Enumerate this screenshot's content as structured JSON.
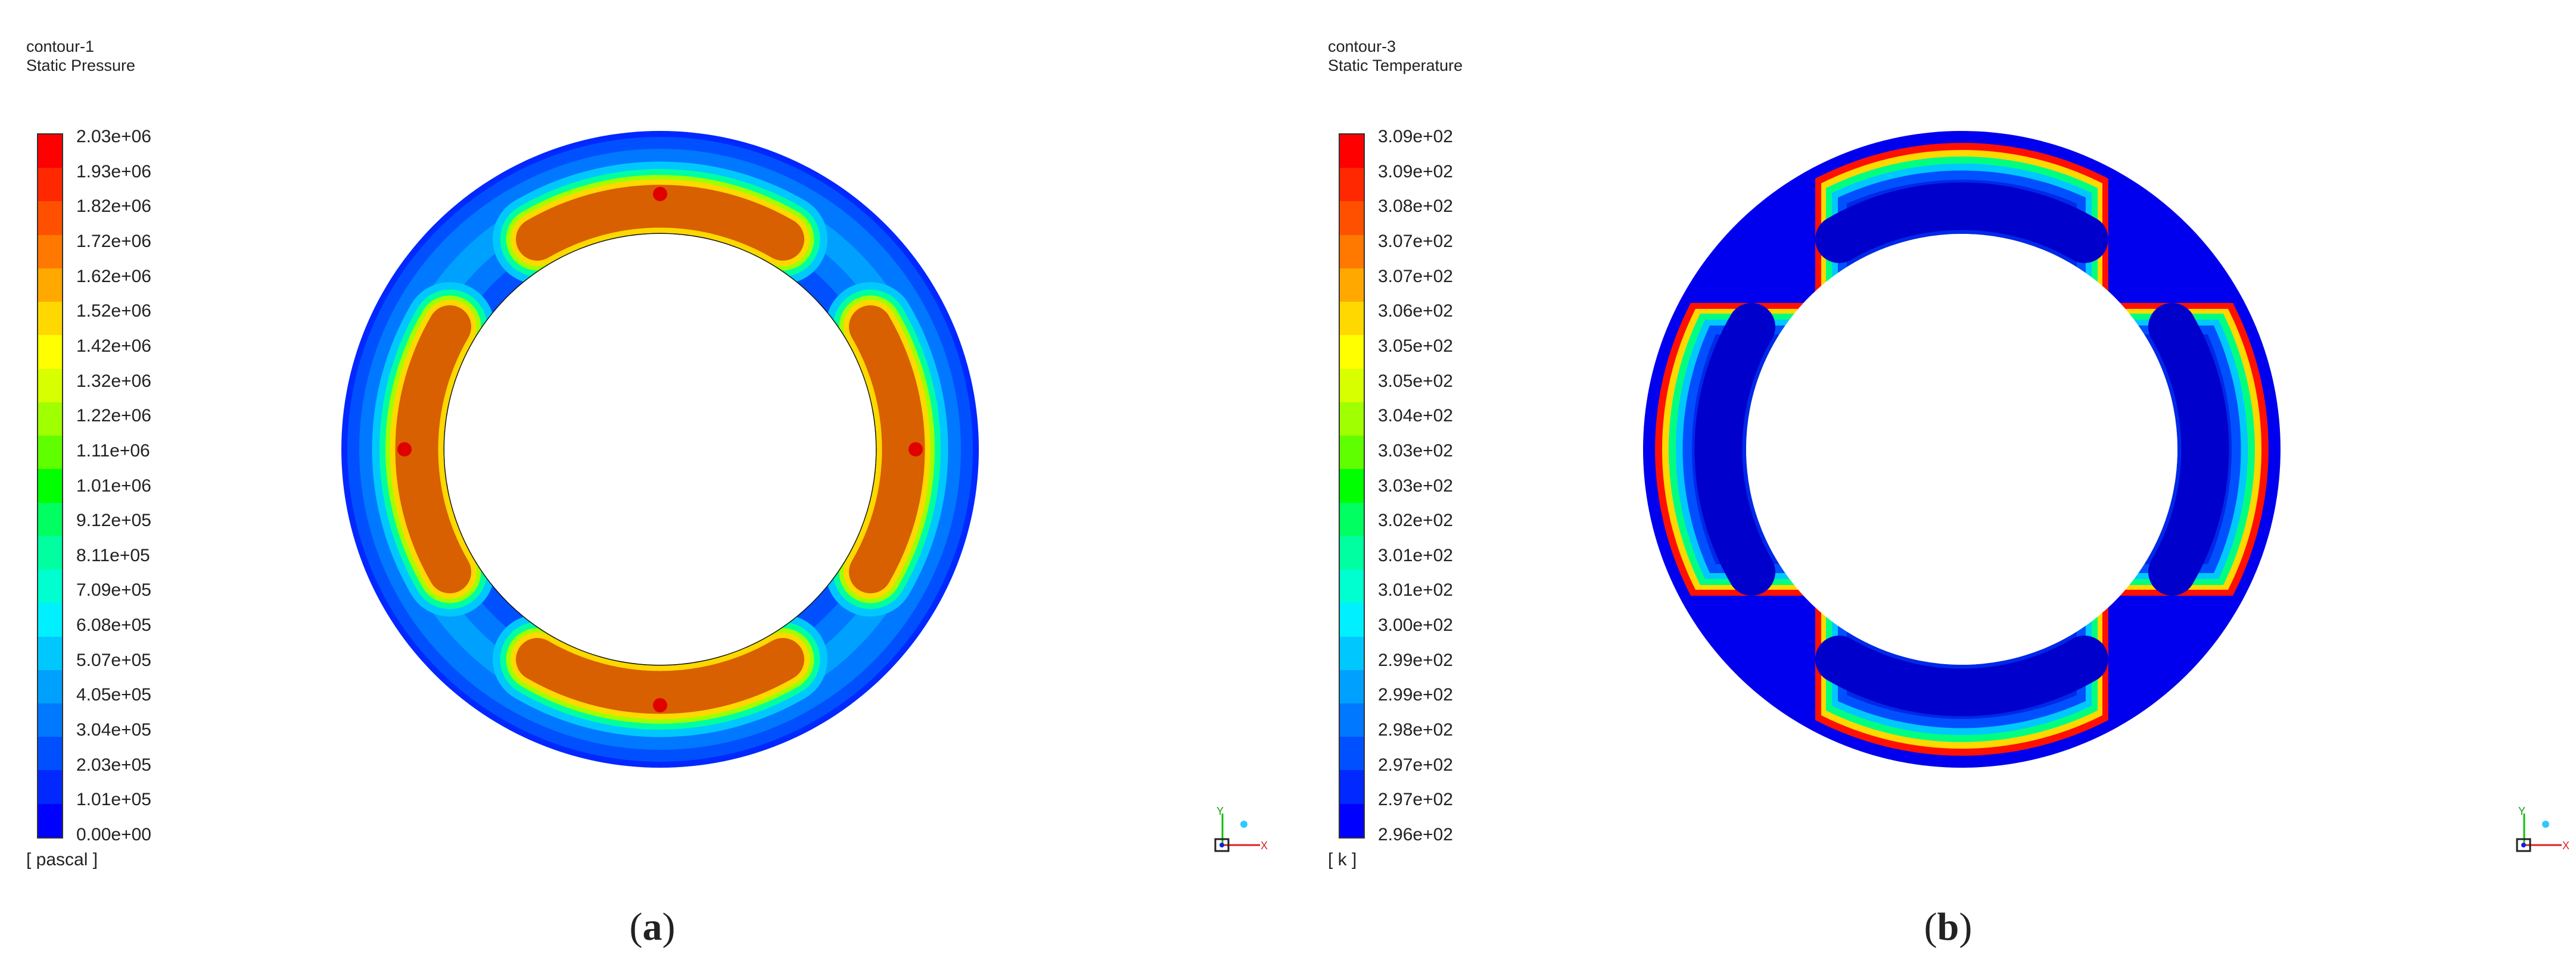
{
  "panels": [
    {
      "id": "a",
      "contour_name": "contour-1",
      "variable": "Static Pressure",
      "units": "[ pascal ]",
      "caption_letter": "a",
      "colorbar_ticks": [
        "2.03e+06",
        "1.93e+06",
        "1.82e+06",
        "1.72e+06",
        "1.62e+06",
        "1.52e+06",
        "1.42e+06",
        "1.32e+06",
        "1.22e+06",
        "1.11e+06",
        "1.01e+06",
        "9.12e+05",
        "8.11e+05",
        "7.09e+05",
        "6.08e+05",
        "5.07e+05",
        "4.05e+05",
        "3.04e+05",
        "2.03e+05",
        "1.01e+05",
        "0.00e+00"
      ]
    },
    {
      "id": "b",
      "contour_name": "contour-3",
      "variable": "Static Temperature",
      "units": "[ k ]",
      "caption_letter": "b",
      "colorbar_ticks": [
        "3.09e+02",
        "3.09e+02",
        "3.08e+02",
        "3.07e+02",
        "3.07e+02",
        "3.06e+02",
        "3.05e+02",
        "3.05e+02",
        "3.04e+02",
        "3.03e+02",
        "3.03e+02",
        "3.02e+02",
        "3.01e+02",
        "3.01e+02",
        "3.00e+02",
        "2.99e+02",
        "2.99e+02",
        "2.98e+02",
        "2.97e+02",
        "2.97e+02",
        "2.96e+02"
      ]
    }
  ],
  "colormap": [
    "#0000ff",
    "#0028ff",
    "#0050ff",
    "#0078ff",
    "#00a0ff",
    "#00c8ff",
    "#00f0ff",
    "#00ffd0",
    "#00ffa0",
    "#00ff60",
    "#00ff00",
    "#60ff00",
    "#a0ff00",
    "#d8ff00",
    "#ffff00",
    "#ffd800",
    "#ffa800",
    "#ff7800",
    "#ff5000",
    "#ff2800",
    "#ff0000"
  ],
  "axis_labels": {
    "y": "Y",
    "x": "X"
  }
}
